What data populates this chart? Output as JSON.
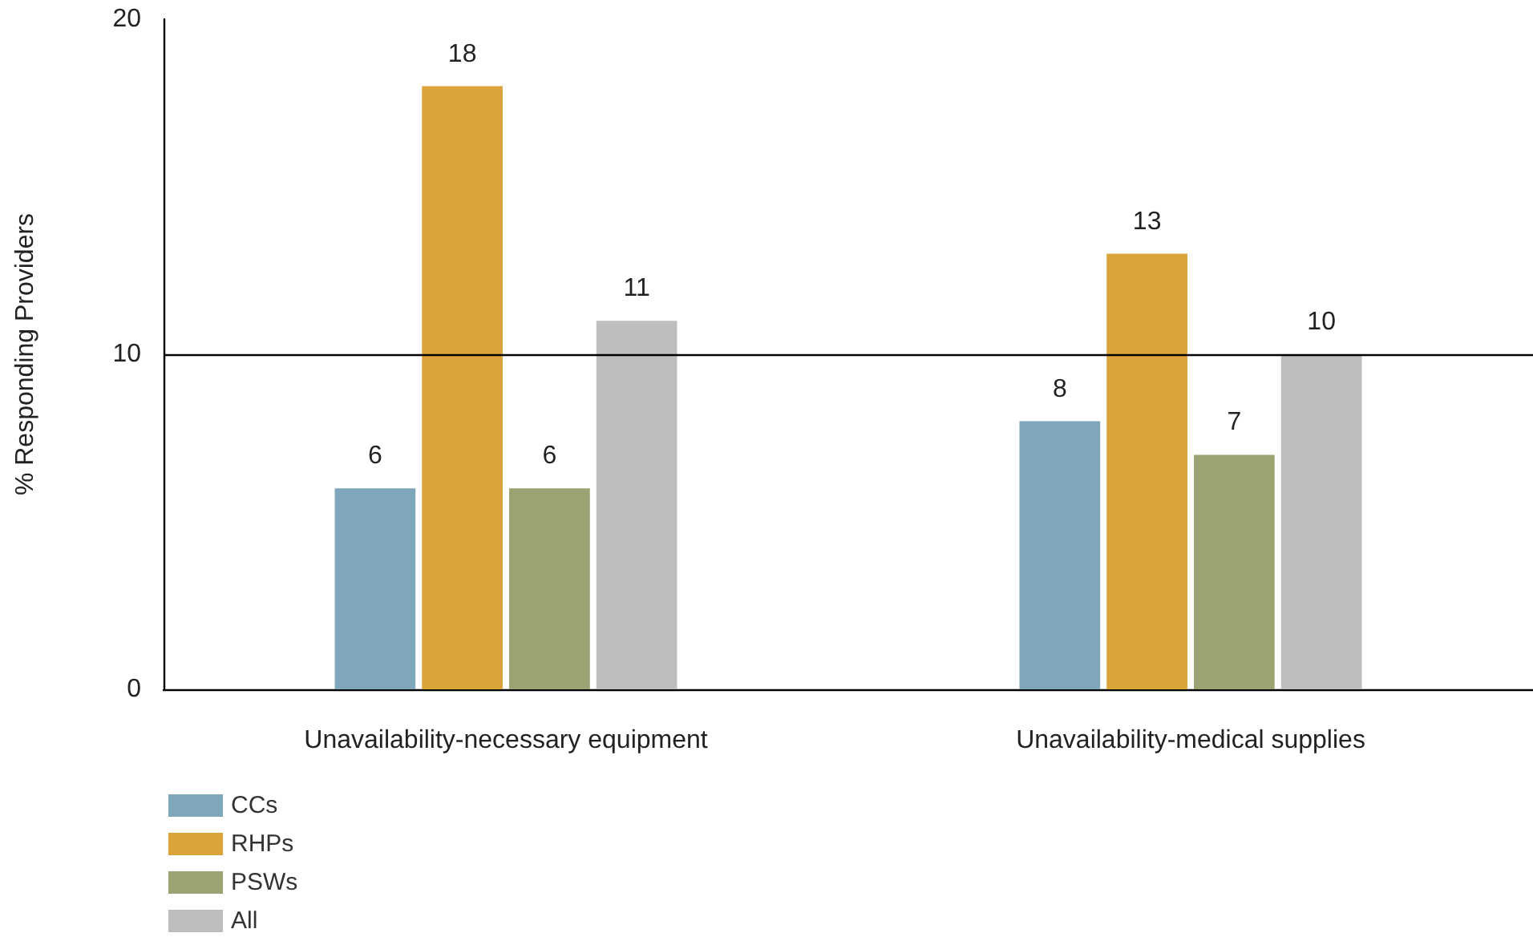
{
  "chart_data": {
    "type": "bar",
    "ylabel": "% Responding Providers",
    "categories": [
      "Unavailability-necessary equipment",
      "Unavailability-medical supplies"
    ],
    "series": [
      {
        "name": "CCs",
        "color": "#7fa7bc",
        "values": [
          6,
          8
        ]
      },
      {
        "name": "RHPs",
        "color": "#dba43a",
        "values": [
          18,
          13
        ]
      },
      {
        "name": "PSWs",
        "color": "#9ba373",
        "values": [
          6,
          7
        ]
      },
      {
        "name": "All",
        "color": "#bcbdbf",
        "values": [
          11,
          10
        ]
      }
    ],
    "ylim": [
      0,
      20
    ],
    "yticks": [
      0,
      10,
      20
    ],
    "grid": false,
    "legend": "bottom left",
    "data_labels": true,
    "ref_lines": [
      {
        "axis": "y",
        "value": 10,
        "color": "#000000"
      }
    ]
  }
}
